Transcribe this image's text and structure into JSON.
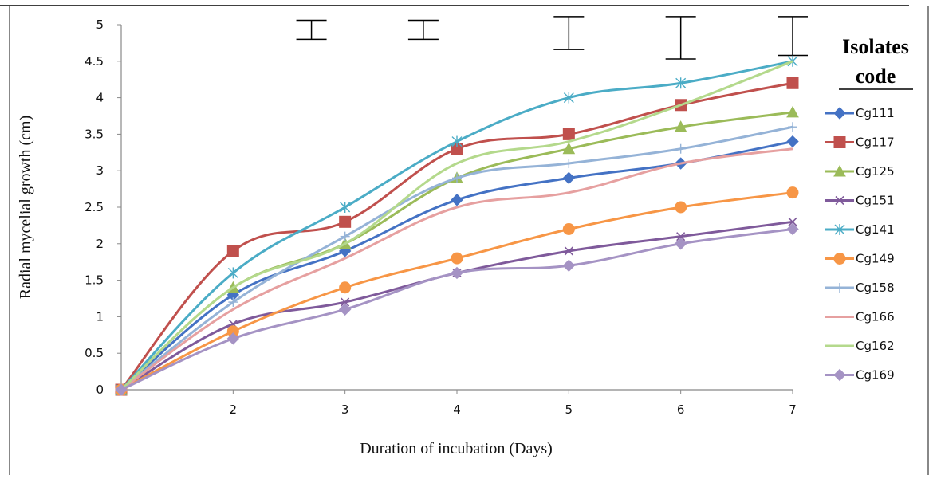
{
  "chart_data": {
    "type": "line",
    "xlabel": "Duration of incubation (Days)",
    "ylabel": "Radial mycelial growth (cm)",
    "x": [
      1,
      2,
      3,
      4,
      5,
      6,
      7
    ],
    "x_tick_labels": [
      "",
      "2",
      "3",
      "4",
      "5",
      "6",
      "7"
    ],
    "ylim": [
      0,
      5
    ],
    "y_ticks": [
      "0",
      "0.5",
      "1",
      "1.5",
      "2",
      "2.5",
      "3",
      "3.5",
      "4",
      "4.5",
      "5"
    ],
    "grid": false,
    "legend": {
      "title_line1": "Isolates",
      "title_line2": "code",
      "placement": "right"
    },
    "error_bars": [
      {
        "x": 2.7,
        "low": 4.8,
        "high": 5.06
      },
      {
        "x": 3.7,
        "low": 4.8,
        "high": 5.06
      },
      {
        "x": 5.0,
        "low": 4.66,
        "high": 5.11
      },
      {
        "x": 6.0,
        "low": 4.53,
        "high": 5.11
      },
      {
        "x": 7.0,
        "low": 4.58,
        "high": 5.11
      }
    ],
    "series": [
      {
        "name": "Cg111",
        "color": "#4472C4",
        "marker": "diamond",
        "values": [
          0,
          1.3,
          1.9,
          2.6,
          2.9,
          3.1,
          3.4
        ]
      },
      {
        "name": "Cg117",
        "color": "#C0504D",
        "marker": "square",
        "values": [
          0,
          1.9,
          2.3,
          3.3,
          3.5,
          3.9,
          4.2
        ]
      },
      {
        "name": "Cg125",
        "color": "#9BBB59",
        "marker": "triangle",
        "values": [
          0,
          1.4,
          2.0,
          2.9,
          3.3,
          3.6,
          3.8
        ]
      },
      {
        "name": "Cg151",
        "color": "#7F5A9B",
        "marker": "x",
        "values": [
          0,
          0.9,
          1.2,
          1.6,
          1.9,
          2.1,
          2.3
        ]
      },
      {
        "name": "Cg141",
        "color": "#4BACC6",
        "marker": "star",
        "values": [
          0,
          1.6,
          2.5,
          3.4,
          4.0,
          4.2,
          4.5
        ]
      },
      {
        "name": "Cg149",
        "color": "#F79646",
        "marker": "circle",
        "values": [
          0,
          0.8,
          1.4,
          1.8,
          2.2,
          2.5,
          2.7
        ]
      },
      {
        "name": "Cg158",
        "color": "#95B3D7",
        "marker": "plus",
        "values": [
          0,
          1.2,
          2.1,
          2.9,
          3.1,
          3.3,
          3.6
        ]
      },
      {
        "name": "Cg166",
        "color": "#E6A0A0",
        "marker": "none",
        "values": [
          0,
          1.1,
          1.8,
          2.5,
          2.7,
          3.1,
          3.3
        ]
      },
      {
        "name": "Cg162",
        "color": "#B4D98C",
        "marker": "none",
        "values": [
          0,
          1.4,
          2.0,
          3.1,
          3.4,
          3.9,
          4.5
        ]
      },
      {
        "name": "Cg169",
        "color": "#A593C4",
        "marker": "diamond",
        "values": [
          0,
          0.7,
          1.1,
          1.6,
          1.7,
          2.0,
          2.2
        ]
      }
    ]
  }
}
